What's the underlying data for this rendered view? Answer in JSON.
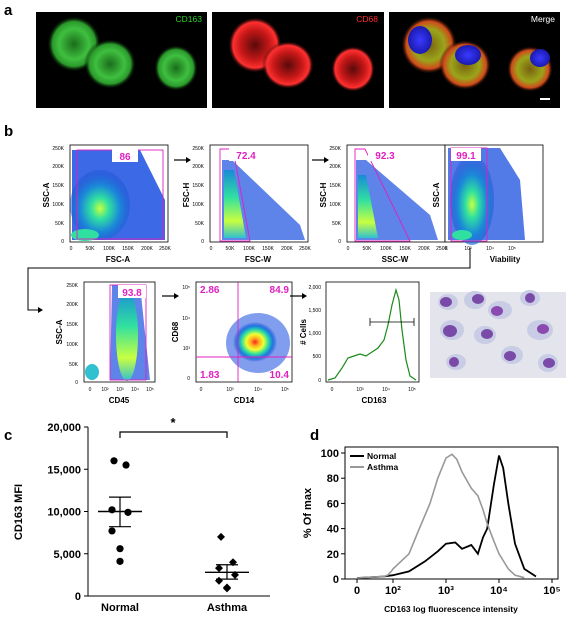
{
  "panels": {
    "a": {
      "letter": "a",
      "channels": [
        {
          "label": "CD163",
          "color": "#2bd42b"
        },
        {
          "label": "CD68",
          "color": "#ff2a2a"
        },
        {
          "label": "Merge",
          "color": "#ffffff"
        }
      ]
    },
    "b": {
      "letter": "b",
      "gates": [
        {
          "value": "86",
          "xlabel": "FSC-A",
          "ylabel": "SSC-A",
          "yticks": [
            "250K",
            "200K",
            "150K",
            "100K",
            "50K",
            "0"
          ],
          "xticks": [
            "0",
            "50K",
            "100K",
            "150K",
            "200K",
            "250K"
          ]
        },
        {
          "value": "72.4",
          "xlabel": "FSC-W",
          "ylabel": "FSC-H",
          "yticks": [
            "250K",
            "200K",
            "150K",
            "100K",
            "50K",
            "0"
          ],
          "xticks": [
            "0",
            "50K",
            "100K",
            "150K",
            "200K",
            "250K"
          ]
        },
        {
          "value": "92.3",
          "xlabel": "SSC-W",
          "ylabel": "SSC-H",
          "yticks": [
            "250K",
            "200K",
            "150K",
            "100K",
            "50K",
            "0"
          ],
          "xticks": [
            "0",
            "50K",
            "100K",
            "150K",
            "200K",
            "250K"
          ]
        },
        {
          "value": "99.1",
          "xlabel": "Viability",
          "ylabel": "SSC-A",
          "yticks": [
            "250K",
            "200K",
            "150K",
            "100K",
            "50K",
            "0"
          ],
          "xticks": [
            "0",
            "10³",
            "10⁴",
            "10⁵"
          ]
        },
        {
          "value": "93.8",
          "xlabel": "CD45",
          "ylabel": "SSC-A",
          "yticks": [
            "250K",
            "200K",
            "150K",
            "100K",
            "50K",
            "0"
          ],
          "xticks": [
            "0",
            "10²",
            "10³",
            "10⁴",
            "10⁵"
          ]
        }
      ],
      "quadrant": {
        "xlabel": "CD14",
        "ylabel": "CD68",
        "q_ul": "2.86",
        "q_ur": "84.9",
        "q_ll": "1.83",
        "q_lr": "10.4",
        "yticks": [
          "10⁵",
          "10⁴",
          "10³",
          "0"
        ],
        "xticks": [
          "0",
          "10³",
          "10⁴",
          "10⁵"
        ]
      },
      "histogram": {
        "xlabel": "CD163",
        "ylabel": "# Cells",
        "yticks": [
          "2,000",
          "1,500",
          "1,000",
          "500",
          "0"
        ],
        "xticks": [
          "0",
          "10³",
          "10⁴",
          "10⁵"
        ]
      }
    },
    "c": {
      "letter": "c",
      "significance": "*"
    },
    "d": {
      "letter": "d"
    }
  },
  "chart_data": [
    {
      "type": "scatter",
      "panel": "c",
      "ylabel": "CD163 MFI",
      "categories": [
        "Normal",
        "Asthma"
      ],
      "ylim": [
        0,
        20000
      ],
      "yticks": [
        "20,000",
        "15,000",
        "10,000",
        "5,000",
        "0"
      ],
      "series": [
        {
          "name": "Normal",
          "marker": "circle",
          "values": [
            16000,
            15500,
            10200,
            9900,
            7700,
            5600,
            4100
          ],
          "mean": 10000,
          "sem_low": 8200,
          "sem_high": 11700
        },
        {
          "name": "Asthma",
          "marker": "diamond",
          "values": [
            7000,
            4000,
            3300,
            2500,
            1800,
            1000,
            900
          ],
          "mean": 2800,
          "sem_low": 2000,
          "sem_high": 3700
        }
      ]
    },
    {
      "type": "line",
      "panel": "d",
      "ylabel": "% Of max",
      "xlabel": "CD163 log fluorescence intensity",
      "xscale": "log",
      "xticks": [
        "0",
        "10²",
        "10³",
        "10⁴",
        "10⁵"
      ],
      "yticks": [
        "100",
        "80",
        "60",
        "40",
        "20",
        "0"
      ],
      "ylim": [
        0,
        100
      ],
      "legend_position": "top-right",
      "series": [
        {
          "name": "Normal",
          "color": "#000000",
          "x": [
            30,
            100,
            200,
            400,
            700,
            1000,
            1500,
            2000,
            3000,
            4000,
            5000,
            6000,
            8000,
            10000,
            12000,
            15000,
            20000,
            30000,
            50000
          ],
          "y": [
            2,
            3,
            6,
            14,
            22,
            28,
            29,
            24,
            27,
            20,
            33,
            40,
            75,
            98,
            88,
            60,
            28,
            8,
            2
          ]
        },
        {
          "name": "Asthma",
          "color": "#999999",
          "x": [
            30,
            50,
            80,
            100,
            200,
            300,
            500,
            700,
            1000,
            1300,
            1600,
            2000,
            3000,
            4000,
            5000,
            6000,
            8000,
            10000,
            15000,
            20000,
            30000
          ],
          "y": [
            2,
            3,
            6,
            8,
            20,
            38,
            60,
            80,
            96,
            99,
            95,
            85,
            72,
            66,
            55,
            44,
            30,
            20,
            8,
            3,
            1
          ]
        }
      ]
    }
  ]
}
